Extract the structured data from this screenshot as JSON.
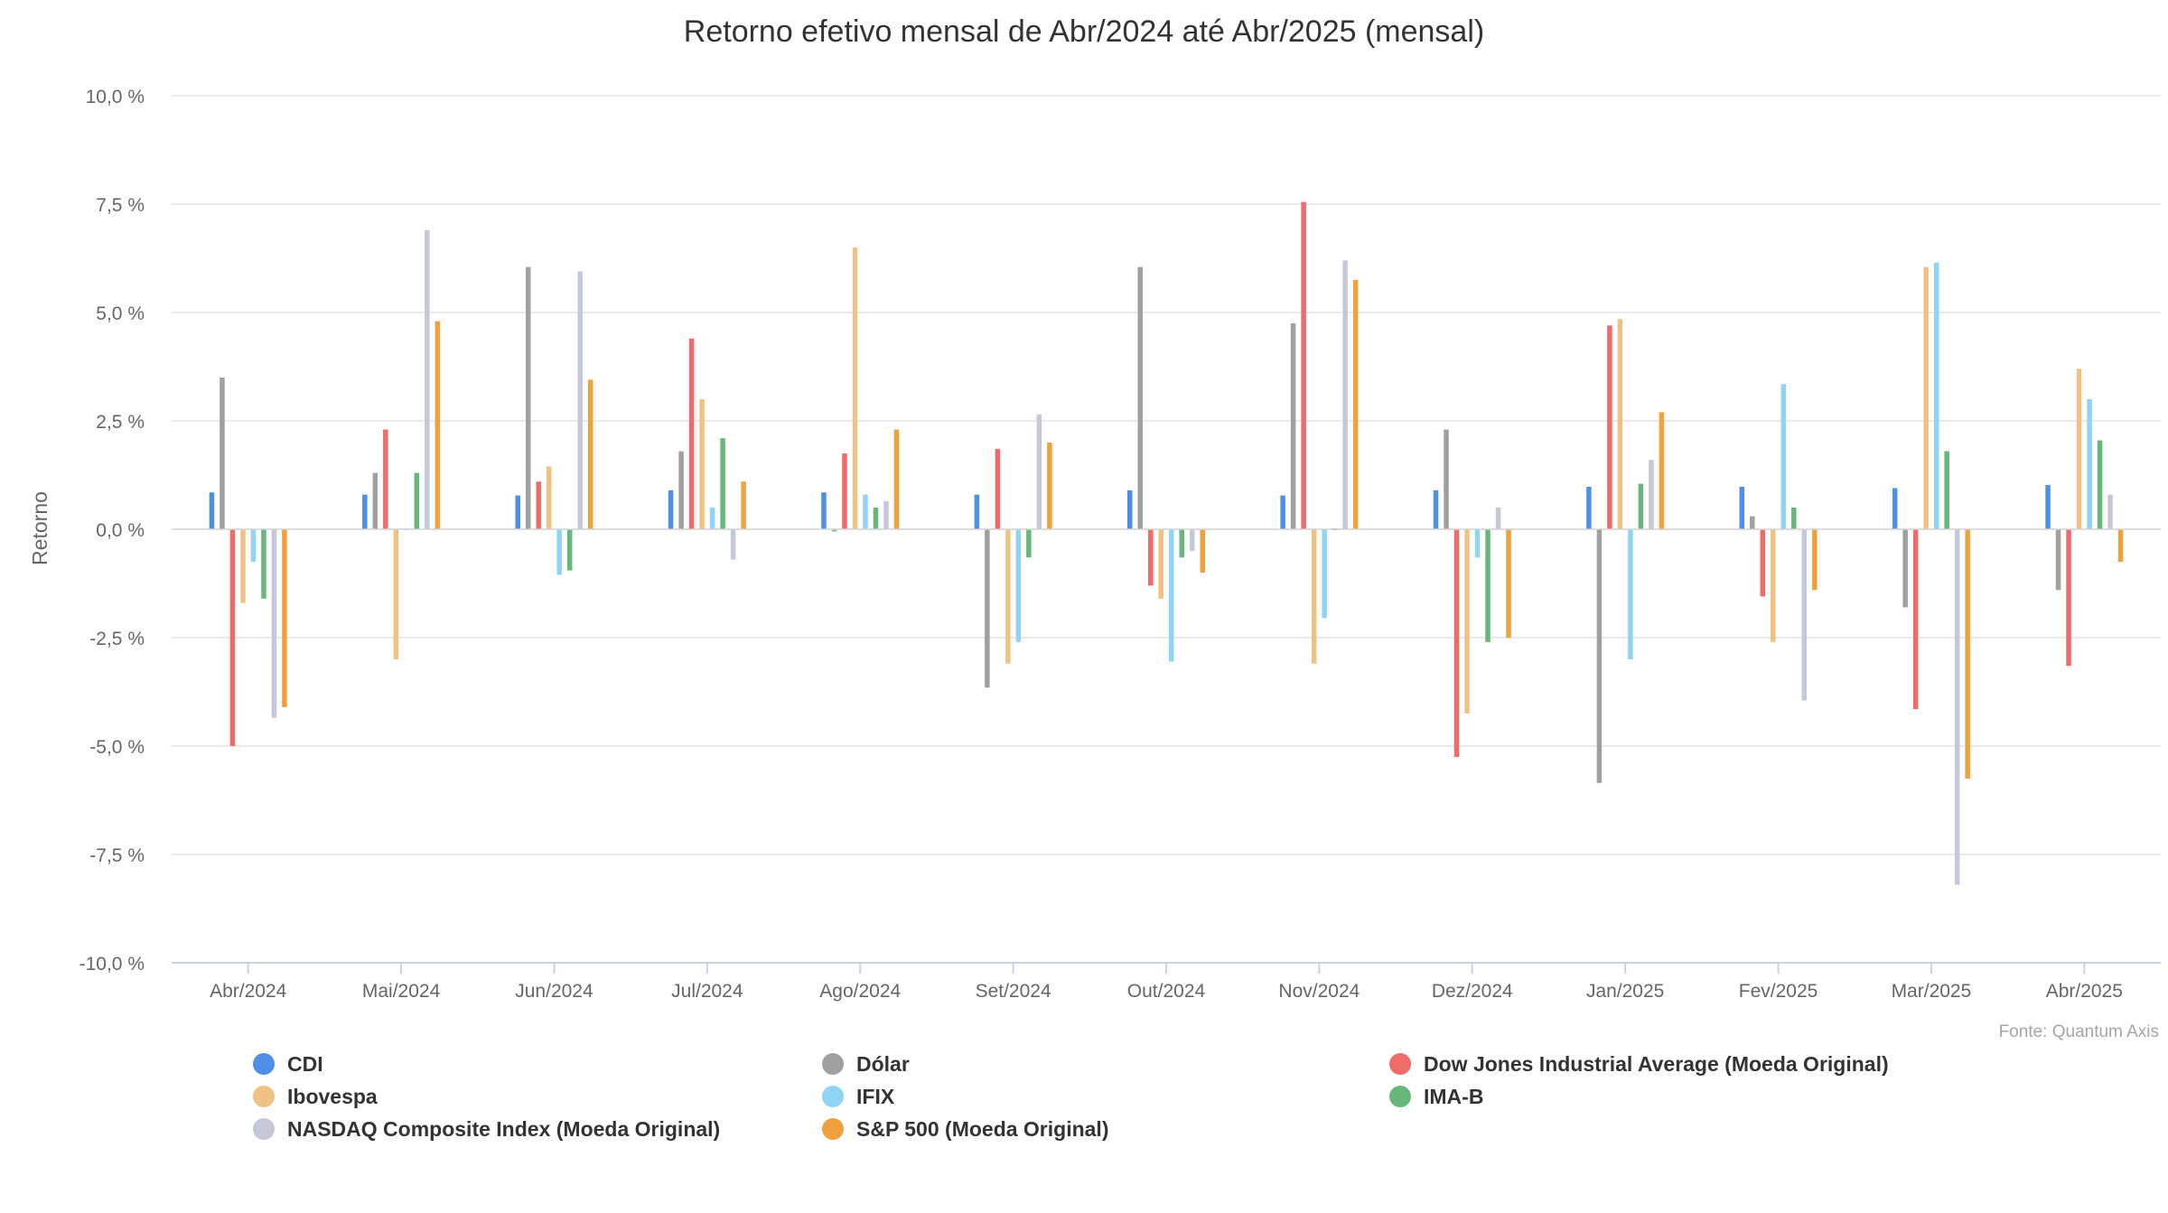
{
  "chart_data": {
    "type": "bar",
    "title": "Retorno efetivo mensal de Abr/2024 até Abr/2025 (mensal)",
    "xlabel": "",
    "ylabel": "Retorno",
    "ylim": [
      -10,
      10
    ],
    "yticks": [
      10,
      7.5,
      5,
      2.5,
      0,
      -2.5,
      -5,
      -7.5,
      -10
    ],
    "ytick_labels": [
      "10,0 %",
      "7,5 %",
      "5,0 %",
      "2,5 %",
      "0,0 %",
      "-2,5 %",
      "-5,0 %",
      "-7,5 %",
      "-10,0 %"
    ],
    "grid": true,
    "legend_position": "bottom",
    "source": "Fonte: Quantum Axis",
    "categories": [
      "Abr/2024",
      "Mai/2024",
      "Jun/2024",
      "Jul/2024",
      "Ago/2024",
      "Set/2024",
      "Out/2024",
      "Nov/2024",
      "Dez/2024",
      "Jan/2025",
      "Fev/2025",
      "Mar/2025",
      "Abr/2025"
    ],
    "series": [
      {
        "name": "CDI",
        "color": "#4e8fe8",
        "values": [
          0.85,
          0.8,
          0.78,
          0.9,
          0.85,
          0.8,
          0.9,
          0.78,
          0.9,
          0.98,
          0.98,
          0.95,
          1.02
        ]
      },
      {
        "name": "Dólar",
        "color": "#a0a0a0",
        "values": [
          3.5,
          1.3,
          6.05,
          1.8,
          -0.05,
          -3.65,
          6.05,
          4.75,
          2.3,
          -5.85,
          0.3,
          -1.8,
          -1.4
        ]
      },
      {
        "name": "Dow Jones Industrial Average (Moeda Original)",
        "color": "#f06a6a",
        "values": [
          -5.0,
          2.3,
          1.1,
          4.4,
          1.75,
          1.85,
          -1.3,
          7.55,
          -5.25,
          4.7,
          -1.55,
          -4.15,
          -3.15
        ]
      },
      {
        "name": "Ibovespa",
        "color": "#efc283",
        "values": [
          -1.7,
          -3.0,
          1.45,
          3.0,
          6.5,
          -3.1,
          -1.6,
          -3.1,
          -4.25,
          4.85,
          -2.6,
          6.05,
          3.7
        ]
      },
      {
        "name": "IFIX",
        "color": "#8fd4f5",
        "values": [
          -0.75,
          0.0,
          -1.05,
          0.5,
          0.8,
          -2.6,
          -3.05,
          -2.05,
          -0.65,
          -3.0,
          3.35,
          6.15,
          3.0
        ]
      },
      {
        "name": "IMA-B",
        "color": "#68b77a",
        "values": [
          -1.6,
          1.3,
          -0.95,
          2.1,
          0.5,
          -0.65,
          -0.65,
          0.0,
          -2.6,
          1.05,
          0.5,
          1.8,
          2.05
        ]
      },
      {
        "name": "NASDAQ Composite Index (Moeda Original)",
        "color": "#c4c8d8",
        "values": [
          -4.35,
          6.9,
          5.95,
          -0.7,
          0.65,
          2.65,
          -0.5,
          6.2,
          0.5,
          1.6,
          -3.95,
          -8.2,
          0.8
        ]
      },
      {
        "name": "S&P 500 (Moeda Original)",
        "color": "#f0a03c",
        "values": [
          -4.1,
          4.8,
          3.45,
          1.1,
          2.3,
          2.0,
          -1.0,
          5.75,
          -2.5,
          2.7,
          -1.4,
          -5.75,
          -0.75
        ]
      }
    ]
  }
}
